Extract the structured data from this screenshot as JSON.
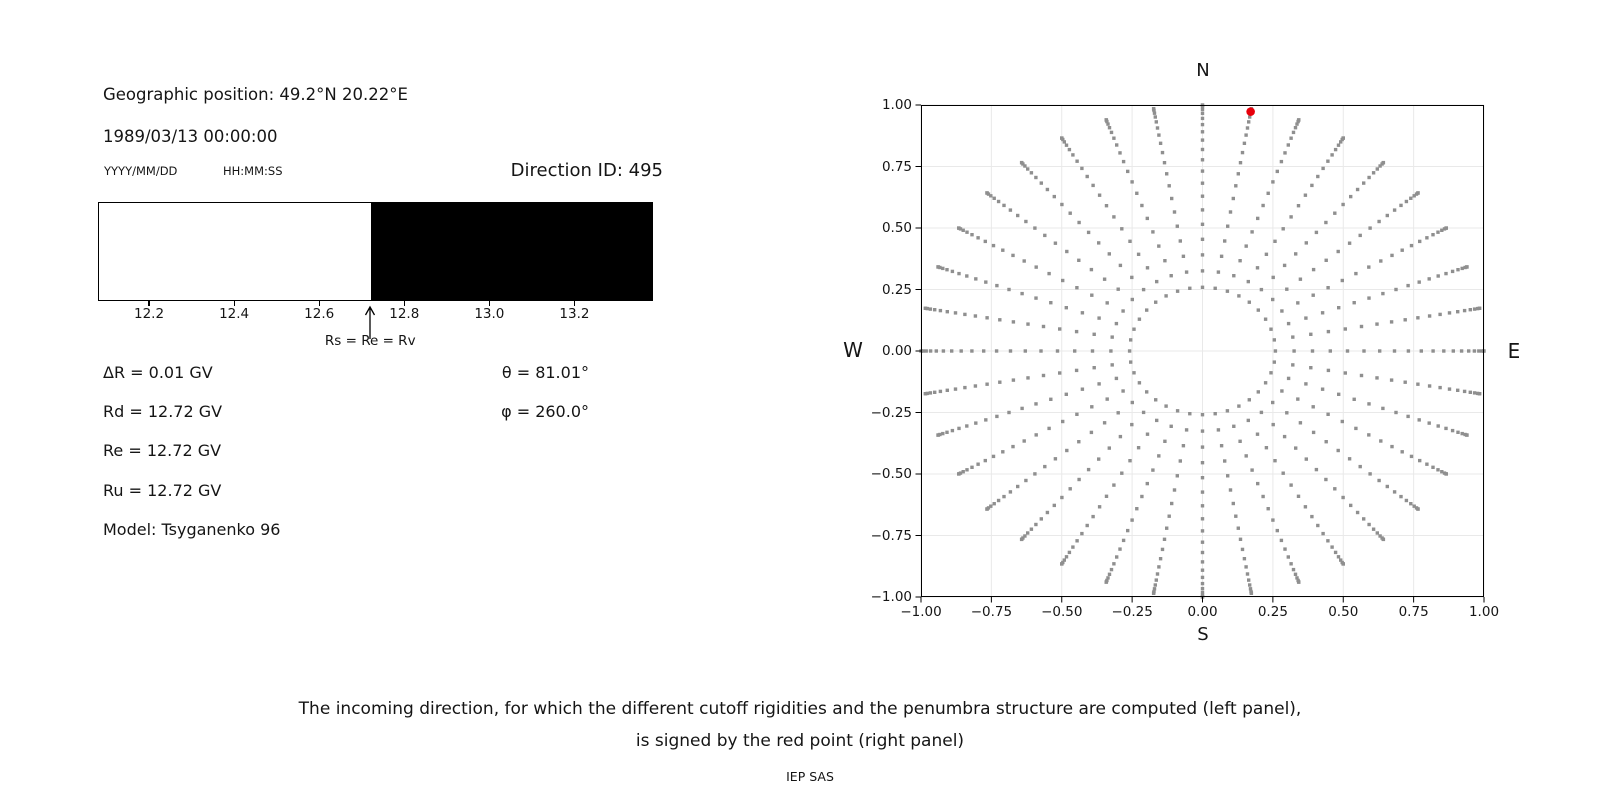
{
  "info_panel": {
    "geo_position": "Geographic position: 49.2°N 20.22°E",
    "datetime": "1989/03/13 00:00:00",
    "date_format": "YYYY/MM/DD",
    "time_format": "HH:MM:SS",
    "direction_id": "Direction ID: 495",
    "rigidity_values": [
      "ΔR = 0.01 GV",
      "Rd = 12.72 GV",
      "Re = 12.72 GV",
      "Ru = 12.72 GV",
      "Model: Tsyganenko 96"
    ],
    "direction_angles": [
      "θ = 81.01°",
      "φ = 260.0°"
    ]
  },
  "caption": {
    "line1": "The incoming direction, for which the different cutoff rigidities and the penumbra structure are computed (left panel),",
    "line2": "is signed by the red point (right panel)",
    "credit": "IEP SAS"
  },
  "chart_data": [
    {
      "name": "penumbra-structure",
      "type": "bar",
      "xlim": [
        12.08,
        13.38
      ],
      "xticks": [
        12.2,
        12.4,
        12.6,
        12.8,
        13.0,
        13.2
      ],
      "xtick_labels": [
        "12.2",
        "12.4",
        "12.6",
        "12.8",
        "13.0",
        "13.2"
      ],
      "unit": "GV",
      "segments": [
        {
          "from": 12.08,
          "to": 12.72,
          "color": "#ffffff"
        },
        {
          "from": 12.72,
          "to": 13.38,
          "color": "#000000"
        }
      ],
      "annotation": {
        "x": 12.72,
        "label": "Rs = Re = Rv"
      }
    },
    {
      "name": "incoming-direction-map",
      "type": "scatter",
      "xlim": [
        -1,
        1
      ],
      "ylim": [
        -1,
        1
      ],
      "xticks": [
        -1.0,
        -0.75,
        -0.5,
        -0.25,
        0.0,
        0.25,
        0.5,
        0.75,
        1.0
      ],
      "yticks": [
        1.0,
        0.75,
        0.5,
        0.25,
        0.0,
        -0.25,
        -0.5,
        -0.75,
        -1.0
      ],
      "xtick_labels": [
        "−1.00",
        "−0.75",
        "−0.50",
        "−0.25",
        "0.00",
        "0.25",
        "0.50",
        "0.75",
        "1.00"
      ],
      "ytick_labels": [
        "1.00",
        "0.75",
        "0.50",
        "0.25",
        "0.00",
        "−0.25",
        "−0.50",
        "−0.75",
        "−1.00"
      ],
      "compass": {
        "top": "N",
        "bottom": "S",
        "left": "W",
        "right": "E"
      },
      "grid": true,
      "grid_color": "#e9e9e9",
      "dot_color": "#8f8f8f",
      "direction_grid": {
        "azimuths_deg": {
          "start": 0,
          "step": 10,
          "count": 36
        },
        "zeniths_deg": [
          15,
          19,
          23,
          27,
          31,
          35,
          39,
          43,
          47,
          51,
          55,
          59,
          63,
          67,
          71,
          75,
          79,
          83,
          87,
          90
        ],
        "radius_rule": "sin(zenith)"
      },
      "red_point": {
        "x": 0.171,
        "y": 0.973,
        "theta_deg": 81.01,
        "phi_deg": 260.0,
        "color": "#e8000b"
      }
    }
  ]
}
